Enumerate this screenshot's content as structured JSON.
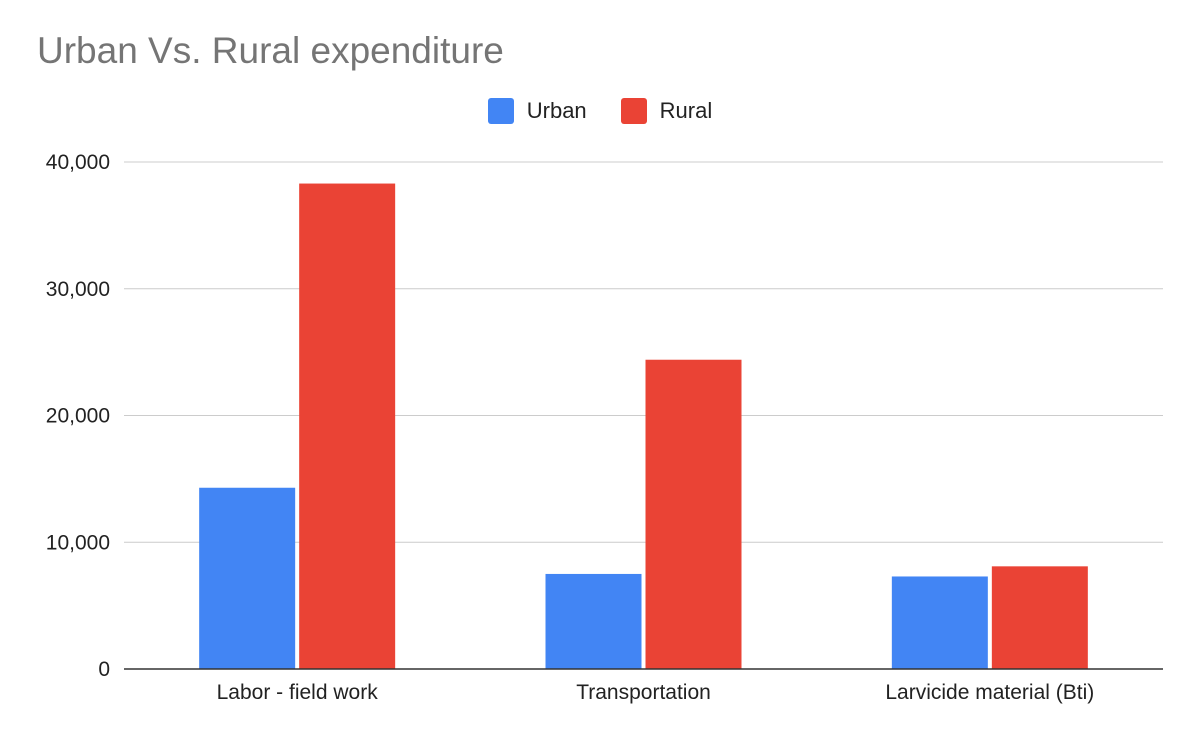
{
  "chart_data": {
    "type": "bar",
    "title": "Urban Vs. Rural expenditure",
    "categories": [
      "Labor - field work",
      "Transportation",
      "Larvicide material (Bti)"
    ],
    "series": [
      {
        "name": "Urban",
        "color": "#4285f4",
        "values": [
          14300,
          7500,
          7300
        ]
      },
      {
        "name": "Rural",
        "color": "#ea4335",
        "values": [
          38300,
          24400,
          8100
        ]
      }
    ],
    "xlabel": "",
    "ylabel": "",
    "ylim": [
      0,
      40000
    ],
    "yticks": [
      "0",
      "10,000",
      "20,000",
      "30,000",
      "40,000"
    ],
    "ytick_values": [
      0,
      10000,
      20000,
      30000,
      40000
    ],
    "grid": true,
    "legend_position": "top-center"
  }
}
